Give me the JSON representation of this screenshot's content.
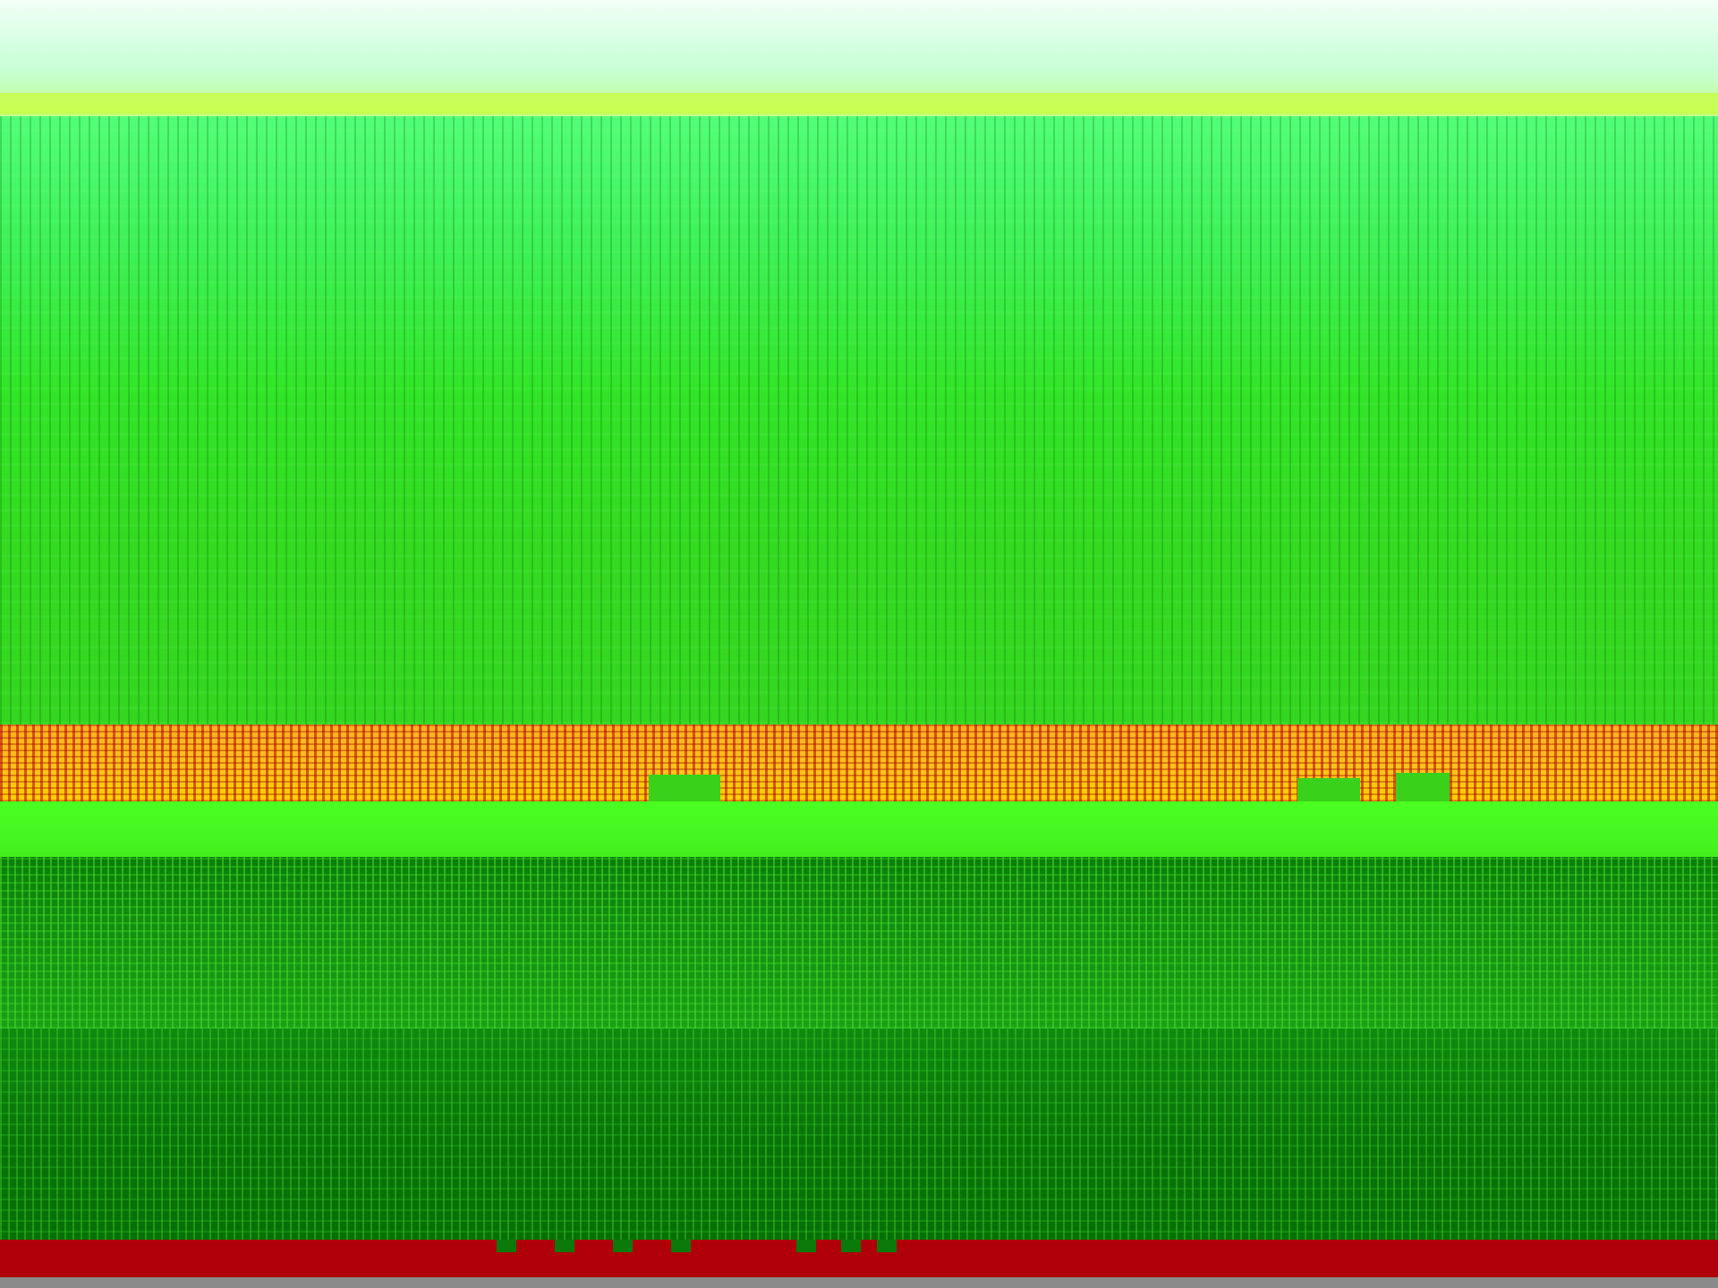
{
  "image": {
    "kind": "abstract glitch texture",
    "palette": {
      "sky_light": "#f2fff6",
      "green_bright": "#52ff78",
      "green_main": "#34d61f",
      "orange_band": "#ffc21a",
      "red_noise": "#b4000a",
      "green_dark": "#087308",
      "red_bottom": "#b0000a",
      "gray_base": "#8a8a8a"
    }
  }
}
